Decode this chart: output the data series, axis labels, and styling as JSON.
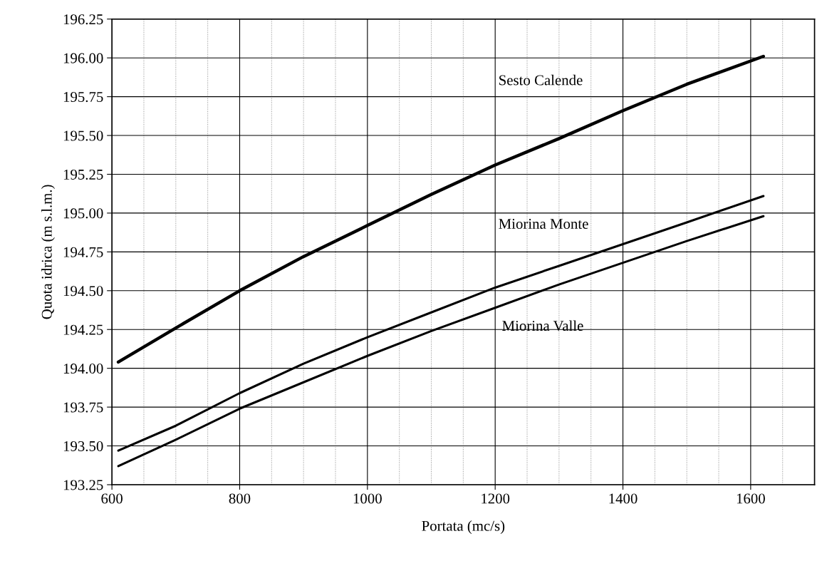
{
  "chart_data": {
    "type": "line",
    "xlabel": "Portata (mc/s)",
    "ylabel": "Quota idrica (m s.l.m.)",
    "x": [
      610,
      700,
      800,
      900,
      1000,
      1100,
      1200,
      1300,
      1400,
      1500,
      1620
    ],
    "series": [
      {
        "name": "Sesto Calende",
        "color": "#000000",
        "values": [
          194.04,
          194.26,
          194.5,
          194.72,
          194.92,
          195.12,
          195.31,
          195.48,
          195.66,
          195.83,
          196.01
        ]
      },
      {
        "name": "Miorina Monte",
        "color": "#000000",
        "values": [
          193.47,
          193.63,
          193.84,
          194.03,
          194.2,
          194.36,
          194.52,
          194.66,
          194.8,
          194.94,
          195.11
        ]
      },
      {
        "name": "Miorina Valle",
        "color": "#000000",
        "values": [
          193.37,
          193.54,
          193.74,
          193.91,
          194.08,
          194.24,
          194.39,
          194.54,
          194.68,
          194.82,
          194.98
        ]
      }
    ],
    "xlim": [
      600,
      1700
    ],
    "xticks": [
      600,
      800,
      1000,
      1200,
      1400,
      1600
    ],
    "ylim": [
      193.25,
      196.25
    ],
    "yticks": [
      {
        "value": 193.25,
        "label": "193.25"
      },
      {
        "value": 193.5,
        "label": "193.50"
      },
      {
        "value": 193.75,
        "label": "193.75"
      },
      {
        "value": 194.0,
        "label": "194.00"
      },
      {
        "value": 194.25,
        "label": "194.25"
      },
      {
        "value": 194.5,
        "label": "194.50"
      },
      {
        "value": 194.75,
        "label": "194.75"
      },
      {
        "value": 195.0,
        "label": "195.00"
      },
      {
        "value": 195.25,
        "label": "195.25"
      },
      {
        "value": 195.5,
        "label": "195.50"
      },
      {
        "value": 195.75,
        "label": "195.75"
      },
      {
        "value": 196.0,
        "label": "196.00"
      },
      {
        "value": 196.25,
        "label": "196.25"
      }
    ],
    "grid": true,
    "legend": false,
    "marker": "none",
    "line_style": "solid"
  }
}
